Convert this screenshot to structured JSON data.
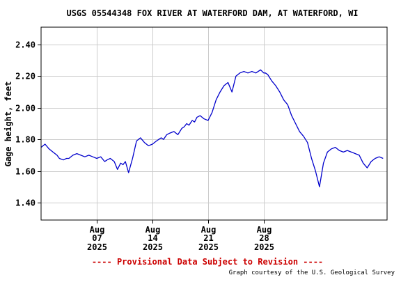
{
  "chart_data": {
    "type": "line",
    "title": "USGS 05544348 FOX RIVER AT WATERFORD DAM, AT WATERFORD, WI",
    "xlabel": "",
    "ylabel": "Gage height, feet",
    "ylim": [
      1.29,
      2.51
    ],
    "xlim_days": [
      0,
      43.5
    ],
    "yticks": [
      {
        "value": 1.4,
        "label": "1.40"
      },
      {
        "value": 1.6,
        "label": "1.60"
      },
      {
        "value": 1.8,
        "label": "1.80"
      },
      {
        "value": 2.0,
        "label": "2.00"
      },
      {
        "value": 2.2,
        "label": "2.20"
      },
      {
        "value": 2.4,
        "label": "2.40"
      }
    ],
    "xticks": [
      {
        "day": 7,
        "month": "Aug",
        "date": "07",
        "year": "2025"
      },
      {
        "day": 14,
        "month": "Aug",
        "date": "14",
        "year": "2025"
      },
      {
        "day": 21,
        "month": "Aug",
        "date": "21",
        "year": "2025"
      },
      {
        "day": 28,
        "month": "Aug",
        "date": "28",
        "year": "2025"
      }
    ],
    "grid": true,
    "line_color": "#0000cc",
    "series": [
      {
        "name": "",
        "x": [
          0.0,
          0.5,
          1.0,
          1.5,
          2.0,
          2.3,
          2.8,
          3.2,
          3.5,
          4.0,
          4.5,
          5.0,
          5.5,
          6.0,
          6.5,
          7.0,
          7.5,
          8.0,
          8.3,
          8.7,
          9.2,
          9.6,
          10.0,
          10.3,
          10.6,
          11.0,
          11.5,
          12.0,
          12.5,
          13.0,
          13.5,
          14.0,
          14.5,
          14.8,
          15.1,
          15.4,
          15.8,
          16.2,
          16.7,
          17.2,
          17.7,
          18.0,
          18.3,
          18.6,
          19.0,
          19.3,
          19.6,
          20.0,
          20.5,
          21.0,
          21.5,
          22.0,
          22.5,
          23.0,
          23.5,
          24.0,
          24.5,
          25.0,
          25.5,
          26.0,
          26.5,
          27.0,
          27.3,
          27.6,
          27.8,
          28.0,
          28.2,
          28.5,
          29.0,
          29.5,
          30.0,
          30.5,
          31.0,
          31.5,
          32.0,
          32.5,
          33.0,
          33.5,
          34.0,
          34.5,
          35.0,
          35.5,
          36.0,
          36.5,
          37.0,
          37.5,
          38.0,
          38.5,
          39.0,
          39.5,
          40.0,
          40.5,
          41.0,
          41.5,
          42.0,
          42.5,
          43.0
        ],
        "values": [
          1.75,
          1.77,
          1.74,
          1.72,
          1.7,
          1.68,
          1.67,
          1.68,
          1.68,
          1.7,
          1.71,
          1.7,
          1.69,
          1.7,
          1.69,
          1.68,
          1.69,
          1.66,
          1.67,
          1.68,
          1.66,
          1.61,
          1.65,
          1.64,
          1.66,
          1.59,
          1.68,
          1.79,
          1.81,
          1.78,
          1.76,
          1.77,
          1.79,
          1.8,
          1.81,
          1.8,
          1.83,
          1.84,
          1.85,
          1.83,
          1.87,
          1.88,
          1.9,
          1.89,
          1.92,
          1.91,
          1.94,
          1.95,
          1.93,
          1.92,
          1.97,
          2.05,
          2.1,
          2.14,
          2.16,
          2.1,
          2.2,
          2.22,
          2.23,
          2.22,
          2.23,
          2.22,
          2.23,
          2.24,
          2.23,
          2.22,
          2.22,
          2.21,
          2.17,
          2.14,
          2.1,
          2.05,
          2.02,
          1.95,
          1.9,
          1.85,
          1.82,
          1.78,
          1.68,
          1.6,
          1.5,
          1.65,
          1.72,
          1.74,
          1.75,
          1.73,
          1.72,
          1.73,
          1.72,
          1.71,
          1.7,
          1.65,
          1.62,
          1.66,
          1.68,
          1.69,
          1.68
        ]
      }
    ],
    "footer_provisional": "---- Provisional Data Subject to Revision ----",
    "provisional_color": "#cc0000",
    "footer_credit": "Graph courtesy of the U.S. Geological Survey"
  }
}
